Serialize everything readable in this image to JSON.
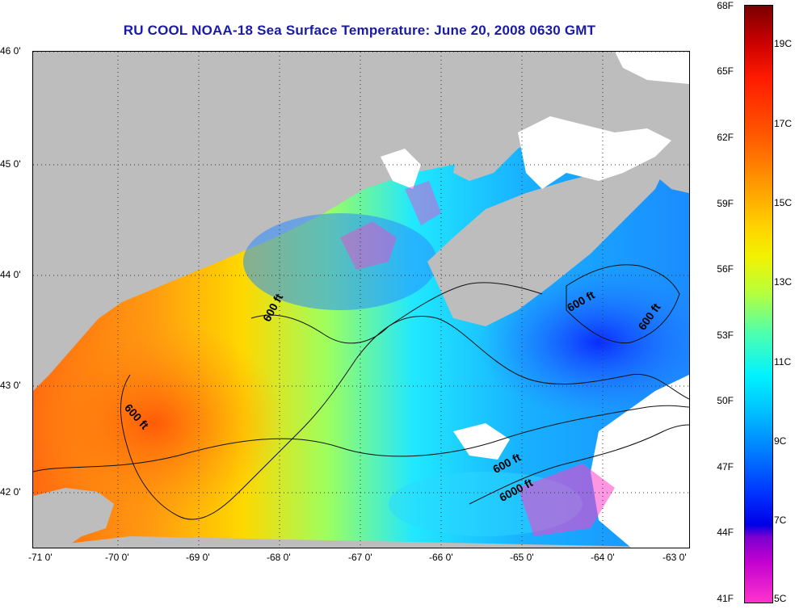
{
  "title": "RU COOL  NOAA-18  Sea Surface Temperature:  June 20, 2008 0630 GMT",
  "lat_labels": [
    "46 0'",
    "45 0'",
    "44 0'",
    "43 0'",
    "42 0'"
  ],
  "lon_labels": [
    "-71 0'",
    "-70 0'",
    "-69 0'",
    "-68 0'",
    "-67 0'",
    "-66 0'",
    "-65 0'",
    "-64 0'",
    "-63 0'"
  ],
  "colorbar": {
    "fahrenheit": [
      "68F",
      "65F",
      "62F",
      "59F",
      "56F",
      "53F",
      "50F",
      "47F",
      "44F",
      "41F"
    ],
    "celsius": [
      "19C",
      "17C",
      "15C",
      "13C",
      "11C",
      "9C",
      "7C",
      "5C"
    ]
  },
  "contour_labels": [
    "600 ft",
    "600 ft",
    "600 ft",
    "600 ft",
    "600 ft",
    "6000 ft"
  ],
  "colors": {
    "title": "#1a1aa6",
    "land": "#bdbdbd",
    "cloud": "#ffffff",
    "warm": "#ff7a10",
    "cool": "#1050ff"
  }
}
